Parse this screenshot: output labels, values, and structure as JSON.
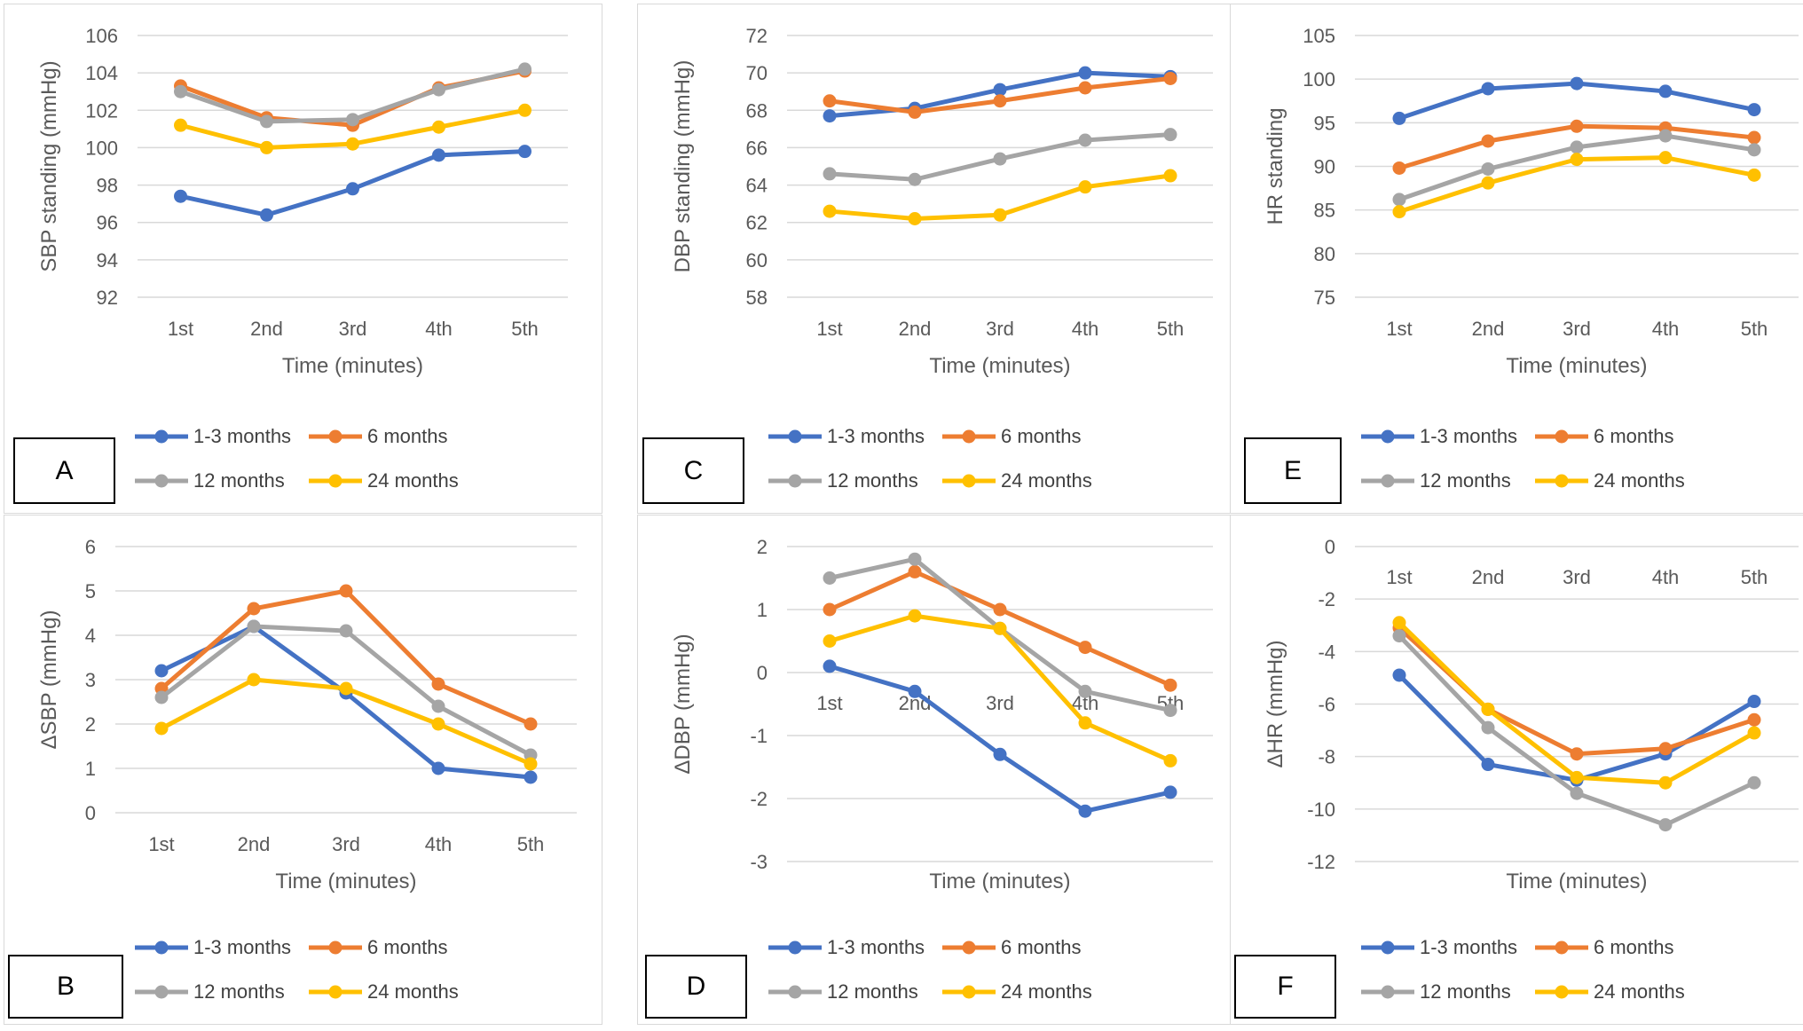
{
  "colors": {
    "1-3 months": "#4472C4",
    "6 months": "#ED7D31",
    "12 months": "#A5A5A5",
    "24 months": "#FFC000",
    "gridline": "#d9d9d9"
  },
  "legend": [
    "1-3 months",
    "6 months",
    "12 months",
    "24 months"
  ],
  "chart_data": [
    {
      "id": "A",
      "panel_label": "A",
      "type": "line",
      "title": "",
      "ylabel": "SBP standing (mmHg)",
      "xlabel": "Time (minutes)",
      "categories": [
        "1st",
        "2nd",
        "3rd",
        "4th",
        "5th"
      ],
      "ylim": [
        92,
        106
      ],
      "yticks": [
        92,
        94,
        96,
        98,
        100,
        102,
        104,
        106
      ],
      "xaxis_at": "bottom",
      "legend_position": "bottom",
      "grid": true,
      "series": [
        {
          "name": "1-3 months",
          "values": [
            97.4,
            96.4,
            97.8,
            99.6,
            99.8
          ]
        },
        {
          "name": "6 months",
          "values": [
            103.3,
            101.6,
            101.2,
            103.2,
            104.1
          ]
        },
        {
          "name": "12 months",
          "values": [
            103.0,
            101.4,
            101.5,
            103.1,
            104.2
          ]
        },
        {
          "name": "24 months",
          "values": [
            101.2,
            100.0,
            100.2,
            101.1,
            102.0
          ]
        }
      ]
    },
    {
      "id": "C",
      "panel_label": "C",
      "type": "line",
      "title": "",
      "ylabel": "DBP standing (mmHg)",
      "xlabel": "Time (minutes)",
      "categories": [
        "1st",
        "2nd",
        "3rd",
        "4th",
        "5th"
      ],
      "ylim": [
        58,
        72
      ],
      "yticks": [
        58,
        60,
        62,
        64,
        66,
        68,
        70,
        72
      ],
      "xaxis_at": "bottom",
      "legend_position": "bottom",
      "grid": true,
      "series": [
        {
          "name": "1-3 months",
          "values": [
            67.7,
            68.1,
            69.1,
            70.0,
            69.8
          ]
        },
        {
          "name": "6 months",
          "values": [
            68.5,
            67.9,
            68.5,
            69.2,
            69.7
          ]
        },
        {
          "name": "12 months",
          "values": [
            64.6,
            64.3,
            65.4,
            66.4,
            66.7
          ]
        },
        {
          "name": "24 months",
          "values": [
            62.6,
            62.2,
            62.4,
            63.9,
            64.5
          ]
        }
      ]
    },
    {
      "id": "E",
      "panel_label": "E",
      "type": "line",
      "title": "",
      "ylabel": "HR standing",
      "xlabel": "Time (minutes)",
      "categories": [
        "1st",
        "2nd",
        "3rd",
        "4th",
        "5th"
      ],
      "ylim": [
        75,
        105
      ],
      "yticks": [
        75,
        80,
        85,
        90,
        95,
        100,
        105
      ],
      "xaxis_at": "bottom",
      "legend_position": "bottom",
      "grid": true,
      "series": [
        {
          "name": "1-3 months",
          "values": [
            95.5,
            98.9,
            99.5,
            98.6,
            96.5
          ]
        },
        {
          "name": "6 months",
          "values": [
            89.8,
            92.9,
            94.6,
            94.4,
            93.3
          ]
        },
        {
          "name": "12 months",
          "values": [
            86.2,
            89.7,
            92.2,
            93.5,
            91.9
          ]
        },
        {
          "name": "24 months",
          "values": [
            84.8,
            88.1,
            90.8,
            91.0,
            89.0
          ]
        }
      ]
    },
    {
      "id": "B",
      "panel_label": "B",
      "type": "line",
      "title": "",
      "ylabel": "ΔSBP (mmHg)",
      "xlabel": "Time (minutes)",
      "categories": [
        "1st",
        "2nd",
        "3rd",
        "4th",
        "5th"
      ],
      "ylim": [
        0,
        6
      ],
      "yticks": [
        0,
        1,
        2,
        3,
        4,
        5,
        6
      ],
      "xaxis_at": "bottom",
      "legend_position": "bottom",
      "grid": true,
      "series": [
        {
          "name": "1-3 months",
          "values": [
            3.2,
            4.2,
            2.7,
            1.0,
            0.8
          ]
        },
        {
          "name": "6 months",
          "values": [
            2.8,
            4.6,
            5.0,
            2.9,
            2.0
          ]
        },
        {
          "name": "12 months",
          "values": [
            2.6,
            4.2,
            4.1,
            2.4,
            1.3
          ]
        },
        {
          "name": "24 months",
          "values": [
            1.9,
            3.0,
            2.8,
            2.0,
            1.1
          ]
        }
      ]
    },
    {
      "id": "D",
      "panel_label": "D",
      "type": "line",
      "title": "",
      "ylabel": "ΔDBP (mmHg)",
      "xlabel": "Time (minutes)",
      "categories": [
        "1st",
        "2nd",
        "3rd",
        "4th",
        "5th"
      ],
      "ylim": [
        -3,
        2
      ],
      "yticks": [
        -3,
        -2,
        -1,
        0,
        1,
        2
      ],
      "xaxis_at": "zero",
      "legend_position": "bottom",
      "grid": true,
      "series": [
        {
          "name": "1-3 months",
          "values": [
            0.1,
            -0.3,
            -1.3,
            -2.2,
            -1.9
          ]
        },
        {
          "name": "6 months",
          "values": [
            1.0,
            1.6,
            1.0,
            0.4,
            -0.2
          ]
        },
        {
          "name": "12 months",
          "values": [
            1.5,
            1.8,
            0.7,
            -0.3,
            -0.6
          ]
        },
        {
          "name": "24 months",
          "values": [
            0.5,
            0.9,
            0.7,
            -0.8,
            -1.4
          ]
        }
      ]
    },
    {
      "id": "F",
      "panel_label": "F",
      "type": "line",
      "title": "",
      "ylabel": "ΔHR (mmHg)",
      "xlabel": "Time (minutes)",
      "categories": [
        "1st",
        "2nd",
        "3rd",
        "4th",
        "5th"
      ],
      "ylim": [
        -12,
        0
      ],
      "yticks": [
        -12,
        -10,
        -8,
        -6,
        -4,
        -2,
        0
      ],
      "xaxis_at": "top",
      "legend_position": "bottom",
      "grid": true,
      "series": [
        {
          "name": "1-3 months",
          "values": [
            -4.9,
            -8.3,
            -8.9,
            -7.9,
            -5.9
          ]
        },
        {
          "name": "6 months",
          "values": [
            -3.1,
            -6.2,
            -7.9,
            -7.7,
            -6.6
          ]
        },
        {
          "name": "12 months",
          "values": [
            -3.4,
            -6.9,
            -9.4,
            -10.6,
            -9.0
          ]
        },
        {
          "name": "24 months",
          "values": [
            -2.9,
            -6.2,
            -8.8,
            -9.0,
            -7.1
          ]
        }
      ]
    }
  ]
}
